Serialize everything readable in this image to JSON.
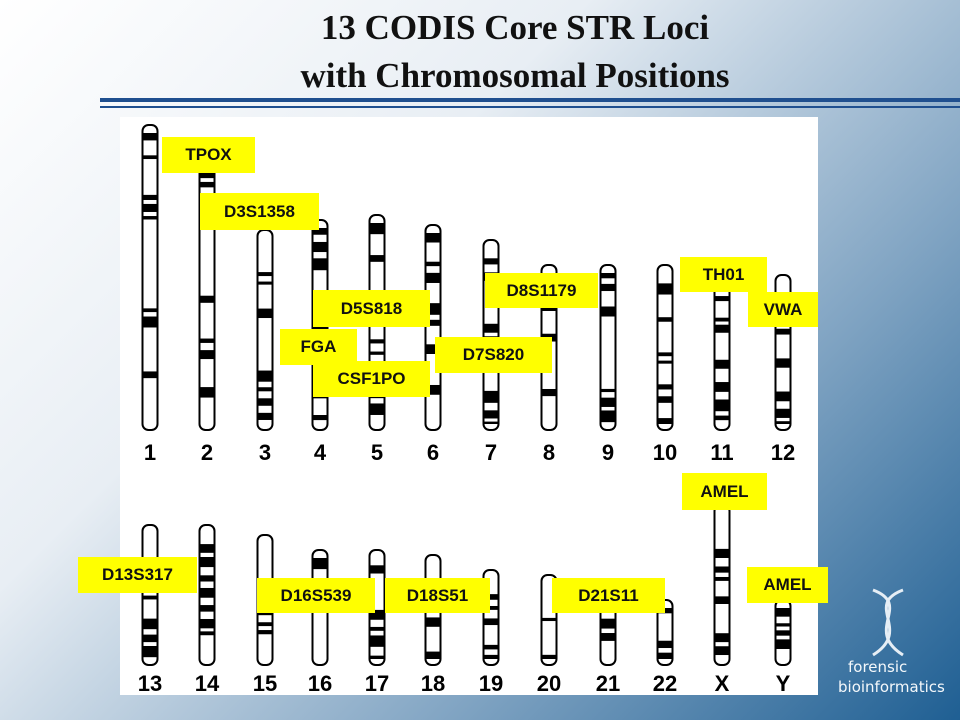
{
  "title": [
    "13 CODIS Core STR Loci",
    "with Chromosomal Positions"
  ],
  "chromosome_labels": [
    "1",
    "2",
    "3",
    "4",
    "5",
    "6",
    "7",
    "8",
    "9",
    "10",
    "11",
    "12",
    "13",
    "14",
    "15",
    "16",
    "17",
    "18",
    "19",
    "20",
    "21",
    "22",
    "X",
    "Y"
  ],
  "loci": [
    "TPOX",
    "D3S1358",
    "TH01",
    "D8S1179",
    "D5S818",
    "VWA",
    "FGA",
    "D7S820",
    "CSF1PO",
    "AMEL",
    "D13S317",
    "AMEL",
    "D16S539",
    "D18S51",
    "D21S11"
  ],
  "logo": [
    "forensic",
    "bioinformatics"
  ]
}
